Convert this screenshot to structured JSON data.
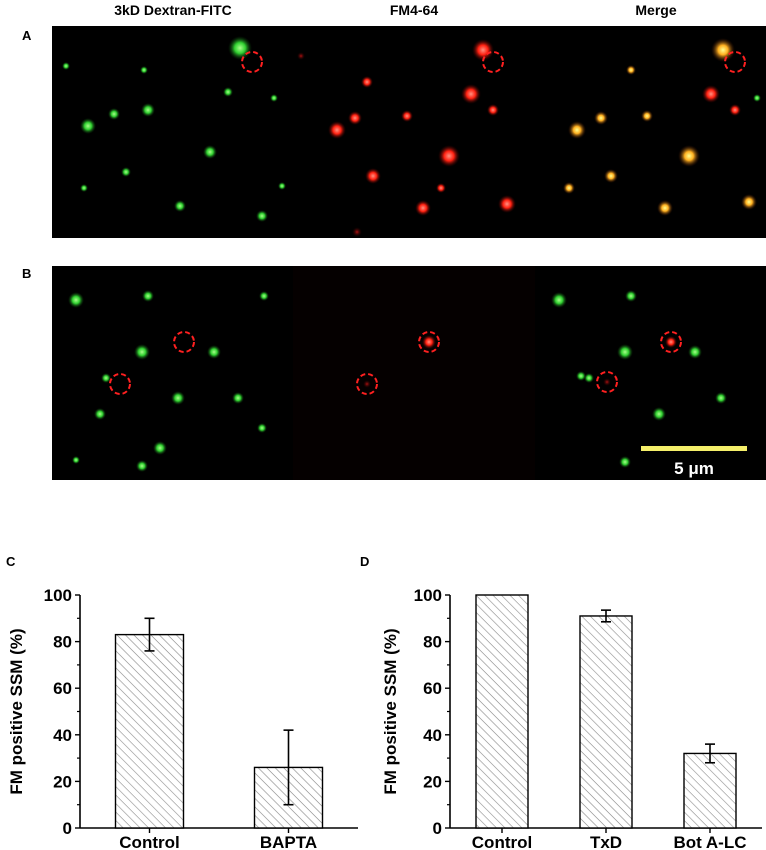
{
  "micrographs": {
    "columns": [
      "3kD Dextran-FITC",
      "FM4-64",
      "Merge"
    ],
    "rows": [
      "A",
      "B"
    ],
    "scale_bar_label": "5 μm"
  },
  "colors": {
    "dextran": "#2ecc2e",
    "fm": "#ff2a1a",
    "merge": "#ffd21a",
    "circle": "#ff2020",
    "scale_bar": "#f5ef6a",
    "bar_fill_hatch": "#888888"
  },
  "chart_data": [
    {
      "panel": "C",
      "type": "bar",
      "hatched": true,
      "categories": [
        "Control",
        "BAPTA"
      ],
      "values": [
        83,
        26
      ],
      "errors": [
        7,
        16
      ],
      "ylabel": "FM positive SSM (%)",
      "ylim": [
        0,
        100
      ],
      "yticks": [
        0,
        20,
        40,
        60,
        80,
        100
      ]
    },
    {
      "panel": "D",
      "type": "bar",
      "hatched": true,
      "categories": [
        "Control",
        "TxD",
        "Bot A-LC"
      ],
      "values": [
        100,
        91,
        32
      ],
      "errors": [
        0,
        2.5,
        4
      ],
      "ylabel": "FM positive SSM (%)",
      "ylim": [
        0,
        100
      ],
      "yticks": [
        0,
        20,
        40,
        60,
        80,
        100
      ]
    }
  ]
}
